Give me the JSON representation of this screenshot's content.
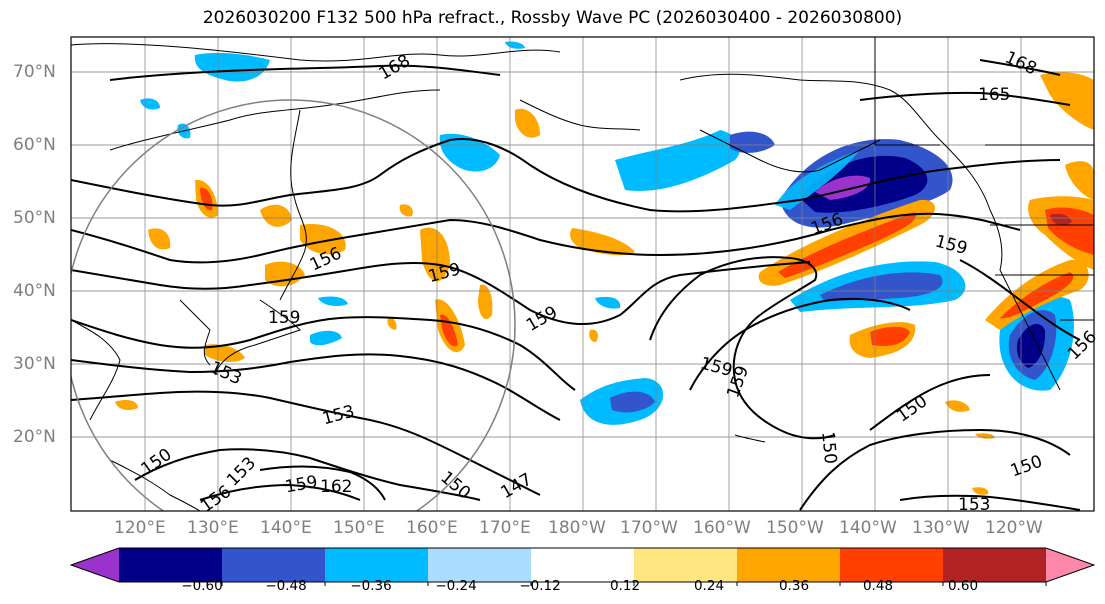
{
  "title": "2026030200 F132 500 hPa refract., Rossby Wave PC (2026030400 - 2026030800)",
  "map": {
    "lat_labels": [
      "70°N",
      "60°N",
      "50°N",
      "40°N",
      "30°N",
      "20°N"
    ],
    "lon_labels": [
      "120°E",
      "130°E",
      "140°E",
      "150°E",
      "160°E",
      "170°E",
      "180°W",
      "170°W",
      "160°W",
      "150°W",
      "140°W",
      "130°W",
      "120°W"
    ],
    "contour_labels": [
      "168",
      "165",
      "168",
      "156",
      "159",
      "159",
      "159",
      "159",
      "159",
      "159",
      "156",
      "153",
      "153",
      "150",
      "153",
      "159",
      "162",
      "156",
      "150",
      "147",
      "150",
      "150",
      "150",
      "153",
      "156"
    ]
  },
  "colorbar": {
    "ticks": [
      "−0.60",
      "−0.48",
      "−0.36",
      "−0.24",
      "−0.12",
      "0.12",
      "0.24",
      "0.36",
      "0.48",
      "0.60"
    ],
    "colors": [
      "#9933cc",
      "#000088",
      "#3355cc",
      "#00bbff",
      "#aaddff",
      "#ffffff",
      "#ffe680",
      "#ffa500",
      "#ff4000",
      "#b22222",
      "#ff88aa"
    ]
  }
}
